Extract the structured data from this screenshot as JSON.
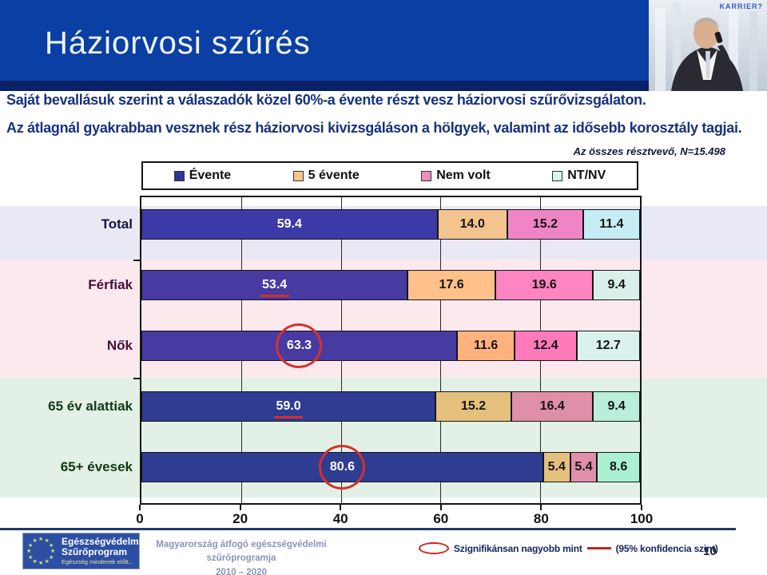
{
  "header": {
    "title": "Háziorvosi szűrés",
    "photo_caption": "KARRIER?"
  },
  "intro": {
    "line1": "Saját bevallásuk szerint a válaszadók közel 60%-a évente részt vesz háziorvosi szűrővizsgálaton.",
    "line2": "Az átlagnál gyakrabban vesznek rész háziorvosi kivizsgáláson a hölgyek, valamint az idősebb korosztály tagjai."
  },
  "note": "Az összes résztvevő, N=15.498",
  "chart_data": {
    "type": "bar",
    "variant": "horizontal-stacked",
    "categories": [
      "Total",
      "Férfiak",
      "Nők",
      "65 év alattiak",
      "65+ évesek"
    ],
    "series": [
      {
        "name": "Évente",
        "values": [
          59.4,
          53.4,
          63.3,
          59.0,
          80.6
        ]
      },
      {
        "name": "5 évente",
        "values": [
          14.0,
          17.6,
          11.6,
          15.2,
          5.4
        ]
      },
      {
        "name": "Nem volt",
        "values": [
          15.2,
          19.6,
          12.4,
          16.4,
          5.4
        ]
      },
      {
        "name": "NT/NV",
        "values": [
          11.4,
          9.4,
          12.7,
          9.4,
          8.6
        ]
      }
    ],
    "xlim": [
      0,
      100
    ],
    "x_ticks": [
      0,
      20,
      40,
      60,
      80,
      100
    ],
    "grid": "vertical",
    "legend_position": "top",
    "legend_colors": [
      "#333399",
      "#f5c78e",
      "#ee8cba",
      "#d6f6ef"
    ],
    "row_colors": [
      [
        "#3d39a6",
        "#f4c48f",
        "#ef85c5",
        "#c6edf5"
      ],
      [
        "#473aa0",
        "#ffc08a",
        "#ff85c2",
        "#d9f0ea"
      ],
      [
        "#473aa0",
        "#ffb27e",
        "#ff7ab8",
        "#daf2ee"
      ],
      [
        "#2e3d92",
        "#e5c07c",
        "#df8fa9",
        "#baeeda"
      ],
      [
        "#2e3d92",
        "#e5c07c",
        "#df8fa9",
        "#aaf0d2"
      ]
    ],
    "category_label_colors": [
      "#14143f",
      "#4a0d3b",
      "#4a0d3b",
      "#0f3a16",
      "#0f3a16"
    ],
    "band_colors": [
      "#e9e9f6",
      "#fce9ee",
      "#e3f0e5"
    ],
    "value_label_color_first": "#ffffff",
    "value_label_color_rest": "#141414",
    "annotations": [
      {
        "row": 1,
        "series": 0,
        "type": "underline"
      },
      {
        "row": 2,
        "series": 0,
        "type": "circle"
      },
      {
        "row": 3,
        "series": 0,
        "type": "underline"
      },
      {
        "row": 4,
        "series": 0,
        "type": "circle"
      }
    ]
  },
  "footer": {
    "logo": {
      "line1": "Egészségvédelmi",
      "line2": "Szűrőprogram",
      "line3": "Egészség mindenek előtt..."
    },
    "program_line1": "Magyarország átfogó egészségvédelmi szűrőprogramja",
    "program_line2": "2010 – 2020",
    "significance": {
      "label": "Szignifikánsan nagyobb mint",
      "confidence": "(95% konfidencia szint)"
    },
    "page_number": "10"
  },
  "colors": {
    "header_bg": "#0c3fa4",
    "header_strip": "#0a2168",
    "intro_text": "#16327d",
    "annotation_red": "#d6302c",
    "separator": "#1e3a67",
    "eu_logo_bg": "#2d4fa3"
  }
}
